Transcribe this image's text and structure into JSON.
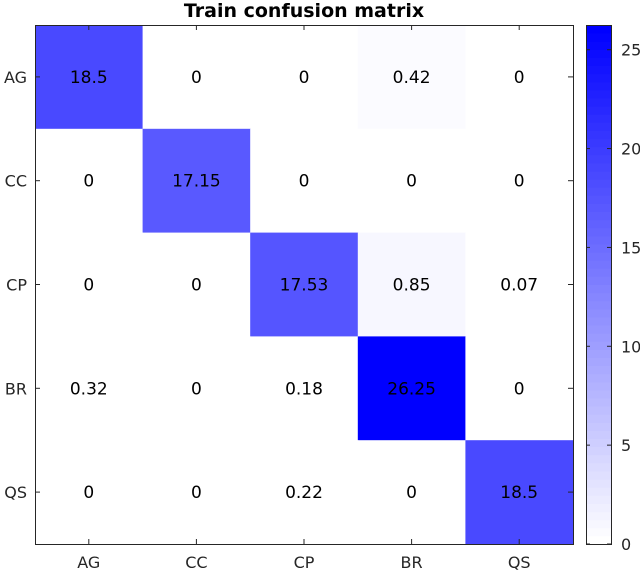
{
  "chart_data": {
    "type": "heatmap",
    "title": "Train confusion matrix",
    "xlabel": "",
    "ylabel": "",
    "x_categories": [
      "AG",
      "CC",
      "CP",
      "BR",
      "QS"
    ],
    "y_categories": [
      "AG",
      "CC",
      "CP",
      "BR",
      "QS"
    ],
    "values": [
      [
        18.5,
        0,
        0,
        0.42,
        0
      ],
      [
        0,
        17.15,
        0,
        0,
        0
      ],
      [
        0,
        0,
        17.53,
        0.85,
        0.07
      ],
      [
        0.32,
        0,
        0.18,
        26.25,
        0
      ],
      [
        0,
        0,
        0.22,
        0,
        18.5
      ]
    ],
    "cell_labels": [
      [
        "18.5",
        "0",
        "0",
        "0.42",
        "0"
      ],
      [
        "0",
        "17.15",
        "0",
        "0",
        "0"
      ],
      [
        "0",
        "0",
        "17.53",
        "0.85",
        "0.07"
      ],
      [
        "0.32",
        "0",
        "0.18",
        "26.25",
        "0"
      ],
      [
        "0",
        "0",
        "0.22",
        "0",
        "18.5"
      ]
    ],
    "colorbar": {
      "range": [
        0,
        26.25
      ],
      "ticks": [
        0,
        5,
        10,
        15,
        20,
        25
      ],
      "levels": 64,
      "colormap": [
        "#ffffff",
        "#0000ff"
      ]
    },
    "grid": false
  }
}
